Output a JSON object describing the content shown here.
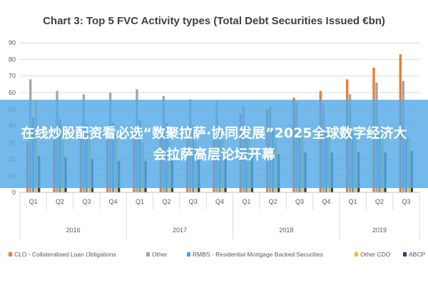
{
  "chart_data": {
    "type": "bar",
    "title": "Chart 3: Top 5 FVC Activity types (Total Debt Securities Issued €bn)",
    "categories": [
      "Q1",
      "Q2",
      "Q3",
      "Q4",
      "Q1",
      "Q2",
      "Q3",
      "Q4",
      "Q1",
      "Q2",
      "Q3",
      "Q4",
      "Q1",
      "Q2",
      "Q3"
    ],
    "groups": [
      {
        "label": "2016",
        "span": 4
      },
      {
        "label": "2017",
        "span": 4
      },
      {
        "label": "2018",
        "span": 4
      },
      {
        "label": "2019",
        "span": 3
      }
    ],
    "series": [
      {
        "name": "CLO - Collateralised Loan Obligations",
        "color": "#ed7d31",
        "values": [
          30,
          32,
          32,
          33,
          36,
          34,
          36,
          39,
          47,
          50,
          57,
          61,
          68,
          75,
          83
        ]
      },
      {
        "name": "Other",
        "color": "#a5a5a5",
        "values": [
          68,
          61,
          59,
          60,
          62,
          58,
          56,
          55,
          52,
          52,
          54,
          53,
          59,
          66,
          67
        ]
      },
      {
        "name": "RMBS - Residential Mortgage Backed Securities",
        "color": "#5b9bd5",
        "values": [
          45,
          44,
          41,
          42,
          43,
          42,
          40,
          37,
          39,
          38,
          37,
          36,
          36,
          35,
          34
        ]
      },
      {
        "name": "Other CDO",
        "color": "#ffc000",
        "values": [
          55,
          40,
          35,
          35,
          30,
          31,
          30,
          32,
          33,
          34,
          34,
          33,
          34,
          36,
          33
        ]
      },
      {
        "name": "ABCP",
        "color": "#264478",
        "values": [
          22,
          21,
          20,
          19,
          19,
          19,
          20,
          21,
          24,
          23,
          24,
          24,
          24,
          24,
          25
        ]
      }
    ],
    "ylim": [
      0,
      90
    ],
    "yticks": [
      0,
      10,
      20,
      30,
      40,
      50,
      60,
      70,
      80,
      90
    ],
    "grid": true,
    "legend": "bottom"
  },
  "colors": {
    "grid": "#d9d9d9",
    "overlay": "#54aae6"
  },
  "overlay": {
    "text": "在线炒股配资看必选“数聚拉萨·协同发展”2025全球数字经济大会拉萨高层论坛开幕"
  }
}
